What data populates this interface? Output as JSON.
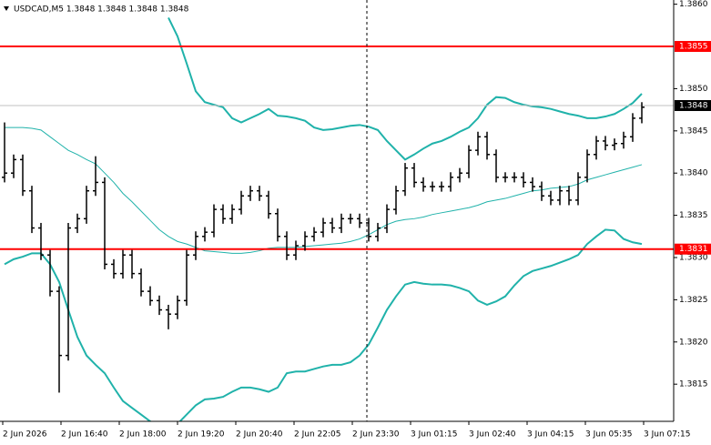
{
  "chart_data": {
    "type": "ohlc",
    "title": "USDCAD,M5  1.3848 1.3848 1.3848 1.3848",
    "ylim": [
      1.38106,
      1.38605
    ],
    "yticks": [
      {
        "value": 1.386,
        "label": "1.3860"
      },
      {
        "value": 1.385,
        "label": "1.3850"
      },
      1.3845,
      {
        "value": 1.384,
        "label": "1.3840"
      },
      1.3835,
      {
        "value": 1.383,
        "label": "1.3830"
      },
      1.3825,
      {
        "value": 1.382,
        "label": "1.3820"
      },
      1.3815
    ],
    "x_labels": [
      "2 Jun 2026",
      "2 Jun 16:40",
      "2 Jun 18:00",
      "2 Jun 19:20",
      "2 Jun 20:40",
      "2 Jun 22:05",
      "2 Jun 23:30",
      "3 Jun 01:15",
      "3 Jun 02:40",
      "3 Jun 04:15",
      "3 Jun 05:35",
      "3 Jun 07:15"
    ],
    "color": "#000000",
    "open": [
      1.38395,
      1.384,
      1.38416,
      1.38379,
      1.38335,
      1.38303,
      1.3826,
      1.38184,
      1.38335,
      1.38346,
      1.38379,
      1.38389,
      1.38292,
      1.38281,
      1.38303,
      1.38281,
      1.3826,
      1.38249,
      1.38238,
      1.38233,
      1.38249,
      1.38303,
      1.38325,
      1.3833,
      1.38357,
      1.38346,
      1.38357,
      1.38373,
      1.38379,
      1.38373,
      1.38352,
      1.38325,
      1.38303,
      1.38314,
      1.38325,
      1.3833,
      1.38341,
      1.38335,
      1.38346,
      1.38346,
      1.38341,
      1.38325,
      1.38335,
      1.38357,
      1.38379,
      1.38406,
      1.38389,
      1.38384,
      1.38384,
      1.38384,
      1.38395,
      1.384,
      1.38427,
      1.38443,
      1.38422,
      1.38395,
      1.38395,
      1.38395,
      1.38389,
      1.38384,
      1.38373,
      1.38368,
      1.38379,
      1.38368,
      1.38395,
      1.38422,
      1.38438,
      1.38433,
      1.38435,
      1.38443,
      1.38465
    ],
    "high": [
      1.3846,
      1.38422,
      1.38422,
      1.38385,
      1.38341,
      1.38309,
      1.38266,
      1.38341,
      1.38352,
      1.38385,
      1.3842,
      1.38395,
      1.38298,
      1.38309,
      1.38309,
      1.38287,
      1.38266,
      1.38255,
      1.38244,
      1.38255,
      1.38309,
      1.38331,
      1.38336,
      1.38363,
      1.38363,
      1.38363,
      1.38379,
      1.38385,
      1.38385,
      1.38379,
      1.38358,
      1.38331,
      1.3832,
      1.38331,
      1.38336,
      1.38347,
      1.38347,
      1.38352,
      1.38352,
      1.38352,
      1.38347,
      1.38341,
      1.38363,
      1.38385,
      1.38412,
      1.38412,
      1.38395,
      1.3839,
      1.3839,
      1.38401,
      1.38406,
      1.38433,
      1.38449,
      1.38449,
      1.38428,
      1.38401,
      1.38401,
      1.38401,
      1.38395,
      1.3839,
      1.38379,
      1.38385,
      1.38385,
      1.38401,
      1.38428,
      1.38444,
      1.38444,
      1.38441,
      1.38449,
      1.38471,
      1.38484
    ],
    "low": [
      1.38389,
      1.38394,
      1.38373,
      1.38329,
      1.38297,
      1.38254,
      1.3814,
      1.38178,
      1.38329,
      1.3834,
      1.38373,
      1.38286,
      1.38275,
      1.38275,
      1.38275,
      1.38254,
      1.38243,
      1.38232,
      1.38215,
      1.38227,
      1.38243,
      1.38297,
      1.38319,
      1.38324,
      1.3834,
      1.3834,
      1.38351,
      1.38367,
      1.38367,
      1.38346,
      1.38319,
      1.38297,
      1.38297,
      1.38308,
      1.38319,
      1.38324,
      1.38329,
      1.38329,
      1.3834,
      1.38335,
      1.38319,
      1.38319,
      1.38329,
      1.38351,
      1.38373,
      1.38383,
      1.38378,
      1.38378,
      1.38378,
      1.38378,
      1.38389,
      1.38394,
      1.38421,
      1.38416,
      1.38389,
      1.38389,
      1.38389,
      1.38383,
      1.38378,
      1.38367,
      1.38362,
      1.38362,
      1.38362,
      1.38362,
      1.38389,
      1.38416,
      1.38427,
      1.38427,
      1.38429,
      1.38437,
      1.38459
    ],
    "close": [
      1.384,
      1.38416,
      1.38379,
      1.38335,
      1.38303,
      1.3826,
      1.38184,
      1.38335,
      1.38346,
      1.38379,
      1.38389,
      1.38292,
      1.38281,
      1.38303,
      1.38281,
      1.3826,
      1.38249,
      1.38238,
      1.38233,
      1.38249,
      1.38303,
      1.38325,
      1.3833,
      1.38357,
      1.38346,
      1.38357,
      1.38373,
      1.38379,
      1.38373,
      1.38352,
      1.38325,
      1.38303,
      1.38314,
      1.38325,
      1.3833,
      1.38341,
      1.38335,
      1.38346,
      1.38346,
      1.38341,
      1.38325,
      1.38335,
      1.38357,
      1.38379,
      1.38406,
      1.38389,
      1.38384,
      1.38384,
      1.38384,
      1.38395,
      1.384,
      1.38427,
      1.38443,
      1.38422,
      1.38395,
      1.38395,
      1.38395,
      1.38389,
      1.38384,
      1.38373,
      1.38368,
      1.38379,
      1.38368,
      1.38395,
      1.38422,
      1.38438,
      1.38433,
      1.38435,
      1.38443,
      1.38465,
      1.38478
    ],
    "bands": {
      "color": "#20b2aa",
      "upper": [
        null,
        null,
        null,
        null,
        null,
        null,
        null,
        null,
        null,
        null,
        null,
        null,
        null,
        null,
        null,
        null,
        null,
        null,
        1.38584,
        1.38562,
        1.3853,
        1.38497,
        1.38484,
        1.38481,
        1.38478,
        1.38465,
        1.3846,
        1.38465,
        1.3847,
        1.38476,
        1.38468,
        1.38467,
        1.38465,
        1.38462,
        1.38454,
        1.38451,
        1.38452,
        1.38454,
        1.38456,
        1.38457,
        1.38455,
        1.38451,
        1.38438,
        1.38427,
        1.38416,
        1.38422,
        1.38429,
        1.38435,
        1.38438,
        1.38443,
        1.38449,
        1.38454,
        1.38465,
        1.38481,
        1.3849,
        1.38489,
        1.38484,
        1.38481,
        1.38479,
        1.38478,
        1.38476,
        1.38473,
        1.3847,
        1.38468,
        1.38465,
        1.38465,
        1.38467,
        1.3847,
        1.38476,
        1.38483,
        1.38494
      ],
      "middle": [
        1.38454,
        1.38454,
        1.38454,
        1.38453,
        1.38451,
        1.38443,
        1.38435,
        1.38427,
        1.38422,
        1.38416,
        1.38411,
        1.384,
        1.38389,
        1.38376,
        1.38366,
        1.38355,
        1.38344,
        1.38333,
        1.38325,
        1.38319,
        1.38316,
        1.38312,
        1.38308,
        1.38307,
        1.38306,
        1.38305,
        1.38305,
        1.38306,
        1.38308,
        1.38311,
        1.38312,
        1.38312,
        1.38312,
        1.38313,
        1.38314,
        1.38315,
        1.38316,
        1.38317,
        1.38319,
        1.38322,
        1.38327,
        1.38333,
        1.38339,
        1.38343,
        1.38345,
        1.38346,
        1.38348,
        1.38351,
        1.38353,
        1.38355,
        1.38357,
        1.38359,
        1.38362,
        1.38366,
        1.38368,
        1.3837,
        1.38373,
        1.38376,
        1.38379,
        1.3838,
        1.38382,
        1.38383,
        1.38384,
        1.38387,
        1.38392,
        1.38395,
        1.38398,
        1.38401,
        1.38404,
        1.38407,
        1.3841
      ],
      "lower": [
        1.38292,
        1.38298,
        1.38301,
        1.38305,
        1.38305,
        1.38292,
        1.38271,
        1.38238,
        1.38206,
        1.38184,
        1.38173,
        1.38163,
        1.38146,
        1.3813,
        1.38122,
        1.38114,
        1.38106,
        1.381,
        1.38098,
        1.38103,
        1.38114,
        1.38125,
        1.38132,
        1.38133,
        1.38135,
        1.38141,
        1.38146,
        1.38146,
        1.38144,
        1.38141,
        1.38146,
        1.38163,
        1.38165,
        1.38165,
        1.38168,
        1.38171,
        1.38173,
        1.38173,
        1.38176,
        1.38184,
        1.38197,
        1.38217,
        1.38238,
        1.38254,
        1.38268,
        1.38271,
        1.38269,
        1.38268,
        1.38268,
        1.38267,
        1.38264,
        1.3826,
        1.38249,
        1.38244,
        1.38248,
        1.38254,
        1.38267,
        1.38278,
        1.38284,
        1.38287,
        1.3829,
        1.38294,
        1.38298,
        1.38303,
        1.38316,
        1.38325,
        1.38333,
        1.38332,
        1.38322,
        1.38318,
        1.38316
      ]
    },
    "levels": [
      {
        "value": 1.3855,
        "color": "#ff0000"
      },
      {
        "value": 1.3831,
        "color": "#ff0000"
      },
      {
        "value": 1.3848,
        "color": "#c0c0c0"
      }
    ]
  }
}
